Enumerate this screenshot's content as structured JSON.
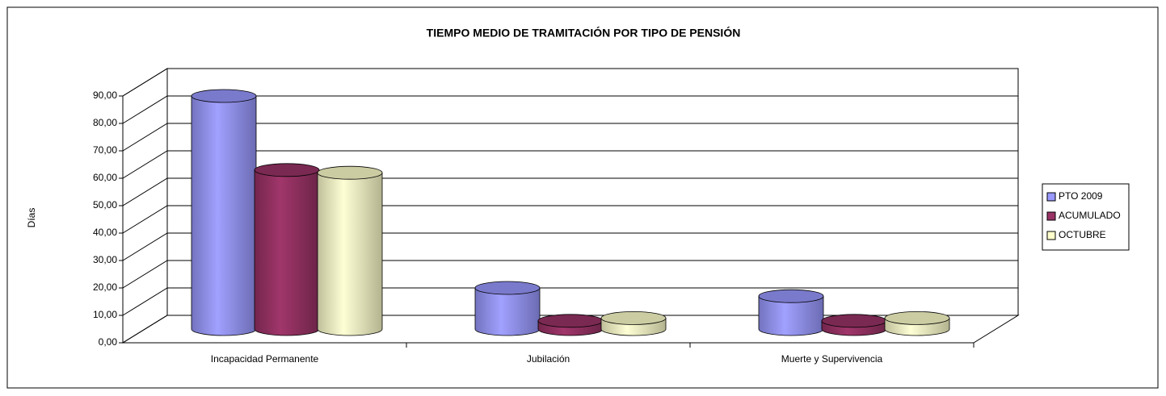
{
  "chart_data": {
    "type": "bar3d",
    "title": "TIEMPO MEDIO DE TRAMITACIÓN POR TIPO DE PENSIÓN",
    "y_label": "Días",
    "categories": [
      "Incapacidad Permanente",
      "Jubilación",
      "Muerte y Supervivencia"
    ],
    "series": [
      {
        "name": "PTO 2009",
        "color": "#9999ff",
        "values": [
          85,
          15,
          12
        ]
      },
      {
        "name": "ACUMULADO",
        "color": "#993366",
        "values": [
          58,
          3,
          3
        ]
      },
      {
        "name": "OCTUBRE",
        "color": "#ffffcc",
        "values": [
          57,
          4,
          4
        ]
      }
    ],
    "ylim": [
      0,
      90
    ],
    "yticks": [
      {
        "value": 0,
        "label": "0,00"
      },
      {
        "value": 10,
        "label": "10,00"
      },
      {
        "value": 20,
        "label": "20,00"
      },
      {
        "value": 30,
        "label": "30,00"
      },
      {
        "value": 40,
        "label": "40,00"
      },
      {
        "value": 50,
        "label": "50,00"
      },
      {
        "value": 60,
        "label": "60,00"
      },
      {
        "value": 70,
        "label": "70,00"
      },
      {
        "value": 80,
        "label": "80,00"
      },
      {
        "value": 90,
        "label": "90,00"
      }
    ],
    "grid": true,
    "legend": "right"
  }
}
